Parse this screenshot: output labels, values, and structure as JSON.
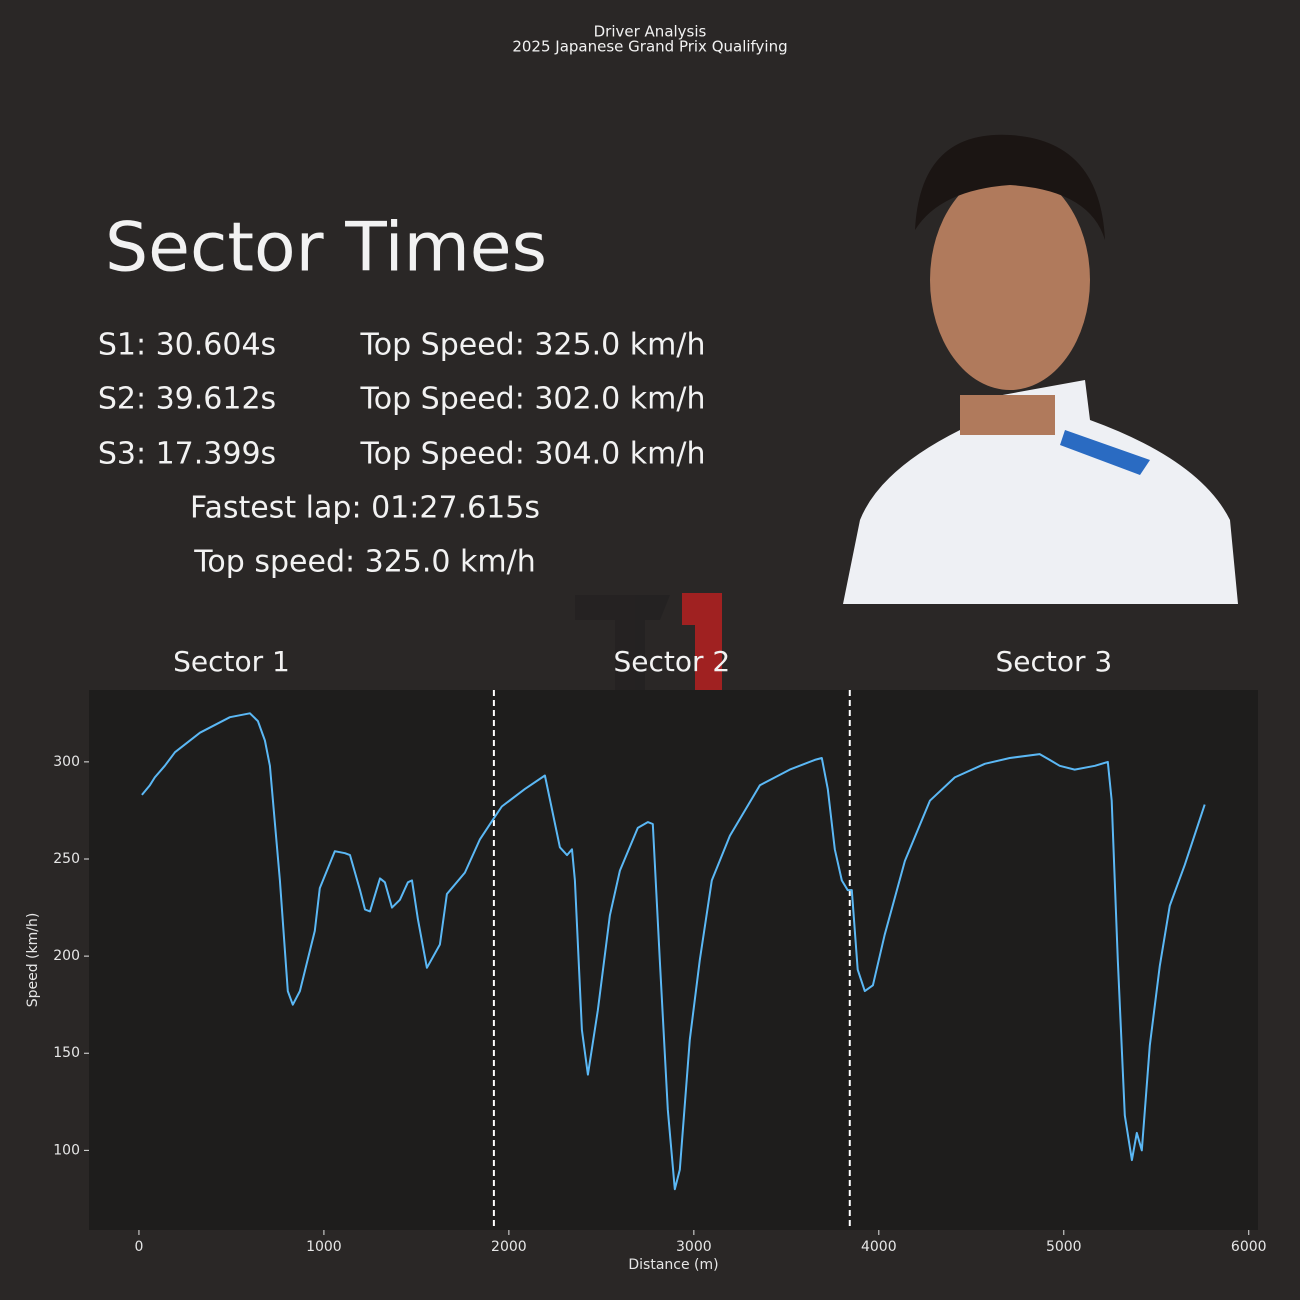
{
  "header": {
    "title": "Driver Analysis",
    "subtitle": "2025 Japanese Grand Prix Qualifying"
  },
  "summary": {
    "heading": "Sector Times",
    "rows": [
      [
        "S1: 30.604s",
        "Top Speed: 325.0 km/h"
      ],
      [
        "S2: 39.612s",
        "Top Speed: 302.0 km/h"
      ],
      [
        "S3: 17.399s",
        "Top Speed: 304.0 km/h"
      ]
    ],
    "fastest_lap": "Fastest lap: 01:27.615s",
    "top_speed": "Top speed: 325.0 km/h"
  },
  "chart_data": {
    "type": "line",
    "xlabel": "Distance (m)",
    "ylabel": "Speed (km/h)",
    "sector_labels": [
      "Sector 1",
      "Sector 2",
      "Sector 3"
    ],
    "sector_boundaries": [
      1919,
      3843
    ],
    "xlim": [
      -270,
      6050
    ],
    "ylim": [
      59,
      337
    ],
    "xticks": [
      0,
      1000,
      2000,
      3000,
      4000,
      5000,
      6000
    ],
    "yticks": [
      100,
      150,
      200,
      250,
      300
    ],
    "x": [
      16,
      59,
      86,
      140,
      195,
      330,
      492,
      600,
      643,
      681,
      708,
      762,
      805,
      832,
      870,
      951,
      978,
      1059,
      1114,
      1141,
      1195,
      1222,
      1249,
      1303,
      1330,
      1368,
      1411,
      1454,
      1476,
      1508,
      1557,
      1627,
      1665,
      1762,
      1843,
      1919,
      1962,
      2086,
      2195,
      2232,
      2276,
      2314,
      2341,
      2357,
      2395,
      2427,
      2481,
      2546,
      2600,
      2697,
      2751,
      2778,
      2816,
      2859,
      2897,
      2924,
      2978,
      3032,
      3097,
      3195,
      3357,
      3519,
      3654,
      3692,
      3724,
      3762,
      3800,
      3832,
      3854,
      3886,
      3924,
      3968,
      4032,
      4141,
      4276,
      4411,
      4573,
      4708,
      4870,
      4924,
      4978,
      5059,
      5168,
      5238,
      5259,
      5292,
      5330,
      5368,
      5395,
      5422,
      5465,
      5519,
      5573,
      5654,
      5762
    ],
    "series": [
      {
        "name": "Speed",
        "color": "#5bb8f5",
        "values": [
          283,
          288,
          292,
          298,
          305,
          315,
          323,
          325,
          321,
          311,
          298,
          239,
          182,
          175,
          182,
          213,
          235,
          254,
          253,
          252,
          234,
          224,
          223,
          240,
          238,
          225,
          229,
          238,
          239,
          219,
          194,
          206,
          232,
          243,
          260,
          271,
          277,
          286,
          293,
          276,
          256,
          252,
          255,
          239,
          162,
          139,
          172,
          221,
          244,
          266,
          269,
          268,
          198,
          121,
          80,
          90,
          157,
          198,
          239,
          262,
          288,
          296,
          301,
          302,
          286,
          255,
          239,
          234,
          234,
          193,
          182,
          185,
          211,
          249,
          280,
          292,
          299,
          302,
          304,
          301,
          298,
          296,
          298,
          300,
          280,
          198,
          118,
          95,
          109,
          100,
          154,
          195,
          226,
          247,
          278
        ]
      }
    ]
  }
}
